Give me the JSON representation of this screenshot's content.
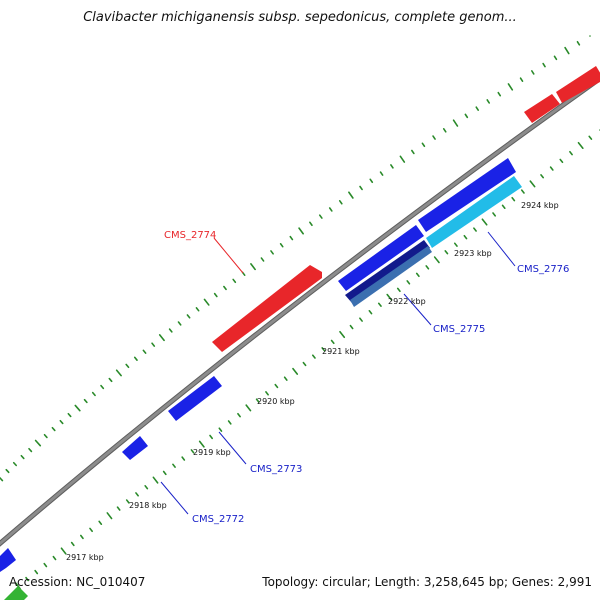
{
  "title": "Clavibacter michiganensis subsp. sepedonicus, complete genom...",
  "footer": {
    "accession_label": "Accession:",
    "accession": "NC_010407",
    "topology_label": "Topology:",
    "topology": "circular",
    "length_label": "Length:",
    "length": "3,258,645 bp",
    "genes_label": "Genes:",
    "genes": "2,991"
  },
  "colors": {
    "backbone": "#8c8c8c",
    "tick": "#2a8a2a",
    "forward_gene": "#e8262a",
    "reverse_gene": "#1a22e6",
    "reverse_gene_dark": "#121a8c",
    "reverse_gene_light": "#22bce8",
    "reverse_gene_steel": "#3b6fb0",
    "partial_gene": "#34b334",
    "forward_label": "#e8262a",
    "reverse_label": "#1a22c8"
  },
  "scale_ticks": [
    {
      "label": "2917 kbp"
    },
    {
      "label": "2918 kbp"
    },
    {
      "label": "2919 kbp"
    },
    {
      "label": "2920 kbp"
    },
    {
      "label": "2921 kbp"
    },
    {
      "label": "2922 kbp"
    },
    {
      "label": "2923 kbp"
    },
    {
      "label": "2924 kbp"
    }
  ],
  "genes": [
    {
      "id": "CMS_2772",
      "strand": "reverse",
      "label": "CMS_2772"
    },
    {
      "id": "CMS_2773",
      "strand": "reverse",
      "label": "CMS_2773"
    },
    {
      "id": "CMS_2774",
      "strand": "forward",
      "label": "CMS_2774"
    },
    {
      "id": "CMS_2775",
      "strand": "reverse",
      "label": "CMS_2775"
    },
    {
      "id": "CMS_2776",
      "strand": "reverse",
      "label": "CMS_2776"
    }
  ]
}
